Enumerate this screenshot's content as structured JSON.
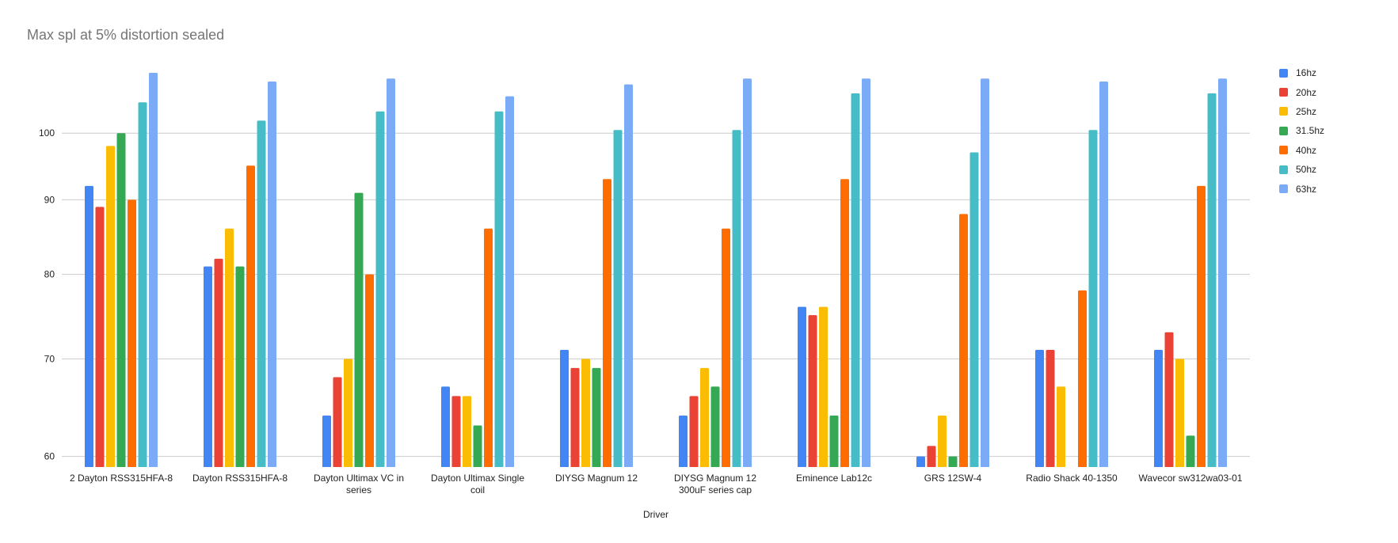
{
  "chart_data": {
    "type": "bar",
    "title": "Max spl at 5% distortion sealed",
    "xlabel": "Driver",
    "ylabel": "",
    "y_scale": "log",
    "yticks": [
      60,
      70,
      80,
      90,
      100
    ],
    "ylim": [
      59,
      110
    ],
    "grid": true,
    "legend_position": "right",
    "categories": [
      [
        "2 Dayton RSS315HFA-8"
      ],
      [
        "Dayton RSS315HFA-8"
      ],
      [
        "Dayton Ultimax VC in",
        "series"
      ],
      [
        "Dayton Ultimax Single",
        "coil"
      ],
      [
        "DIYSG Magnum 12"
      ],
      [
        "DIYSG Magnum 12",
        "300uF series cap"
      ],
      [
        "Eminence Lab12c"
      ],
      [
        "GRS 12SW-4"
      ],
      [
        "Radio Shack 40-1350"
      ],
      [
        "Wavecor sw312wa03-01"
      ]
    ],
    "series": [
      {
        "name": "16hz",
        "color": "#4285f4",
        "values": [
          92,
          81,
          64,
          67,
          71,
          64,
          76,
          60,
          71,
          71
        ]
      },
      {
        "name": "20hz",
        "color": "#ea4335",
        "values": [
          89,
          82,
          68,
          66,
          69,
          66,
          75,
          61,
          71,
          73
        ]
      },
      {
        "name": "25hz",
        "color": "#fbbc04",
        "values": [
          98,
          86,
          70,
          66,
          70,
          69,
          76,
          64,
          67,
          70
        ]
      },
      {
        "name": "31.5hz",
        "color": "#34a853",
        "values": [
          100,
          81,
          91,
          63,
          69,
          67,
          64,
          60,
          null,
          62
        ]
      },
      {
        "name": "40hz",
        "color": "#ff6d01",
        "values": [
          90,
          95,
          80,
          86,
          93,
          86,
          93,
          88,
          78,
          92
        ]
      },
      {
        "name": "50hz",
        "color": "#46bdc6",
        "values": [
          105,
          102,
          103.5,
          103.5,
          100.5,
          100.5,
          106.5,
          97,
          100.5,
          106.5
        ]
      },
      {
        "name": "63hz",
        "color": "#7baaf7",
        "values": [
          110,
          108.5,
          109,
          106,
          108,
          109,
          109,
          109,
          108.5,
          109
        ]
      }
    ]
  }
}
